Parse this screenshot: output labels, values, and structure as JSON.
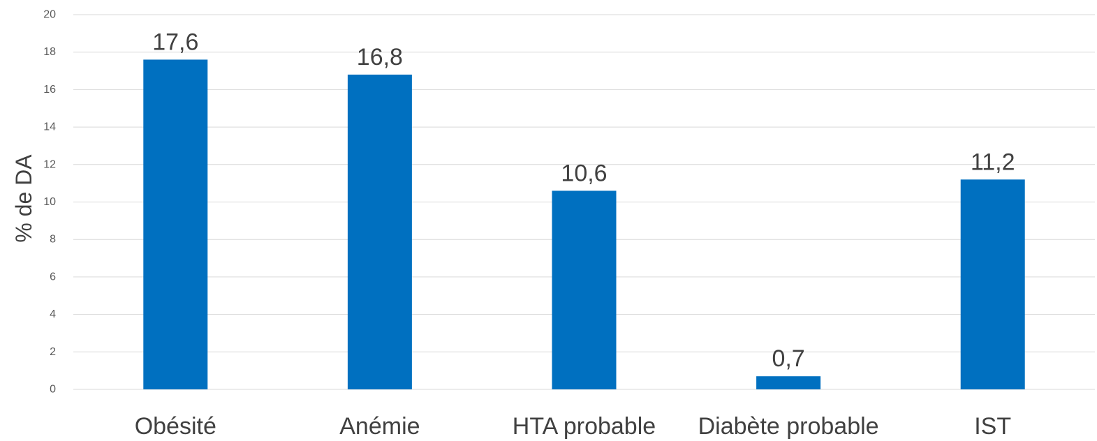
{
  "chart_data": {
    "type": "bar",
    "categories": [
      "Obésité",
      "Anémie",
      "HTA probable",
      "Diabète probable",
      "IST"
    ],
    "values": [
      17.6,
      16.8,
      10.6,
      0.7,
      11.2
    ],
    "value_labels": [
      "17,6",
      "16,8",
      "10,6",
      "0,7",
      "11,2"
    ],
    "title": "",
    "xlabel": "",
    "ylabel": "% de DA",
    "ylim": [
      0,
      20
    ],
    "yticks": [
      0,
      2,
      4,
      6,
      8,
      10,
      12,
      14,
      16,
      18,
      20
    ],
    "grid": true,
    "legend": "none",
    "bar_color": "#0070C0"
  }
}
